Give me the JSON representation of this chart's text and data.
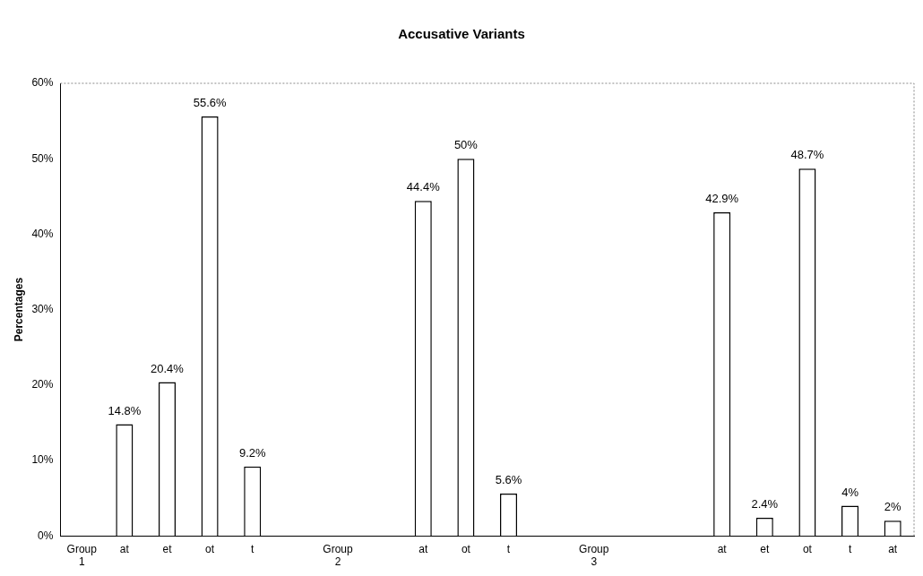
{
  "chart_data": {
    "type": "bar",
    "title": "Accusative Variants",
    "ylabel": "Percentages",
    "categories": [
      "Group 1",
      "at",
      "et",
      "ot",
      "t",
      null,
      "Group 2",
      null,
      "at",
      "ot",
      "t",
      null,
      "Group 3",
      null,
      null,
      "at",
      "et",
      "ot",
      "t",
      "at"
    ],
    "values": [
      null,
      14.8,
      20.4,
      55.6,
      9.2,
      null,
      null,
      null,
      44.4,
      50,
      5.6,
      null,
      null,
      null,
      null,
      42.9,
      2.4,
      48.7,
      4,
      2
    ],
    "value_labels": [
      null,
      "14.8%",
      "20.4%",
      "55.6%",
      "9.2%",
      null,
      null,
      null,
      "44.4%",
      "50%",
      "5.6%",
      null,
      null,
      null,
      null,
      "42.9%",
      "2.4%",
      "48.7%",
      "4%",
      "2%"
    ],
    "color": "#ffffff",
    "ylim": [
      0,
      60
    ],
    "yticks": [
      {
        "value": 0,
        "label": "0%"
      },
      {
        "value": 10,
        "label": "10%"
      },
      {
        "value": 20,
        "label": "20%"
      },
      {
        "value": 30,
        "label": "30%"
      },
      {
        "value": 40,
        "label": "40%"
      },
      {
        "value": 50,
        "label": "50%"
      },
      {
        "value": 60,
        "label": "60%"
      }
    ],
    "grid": false,
    "legend": false
  }
}
